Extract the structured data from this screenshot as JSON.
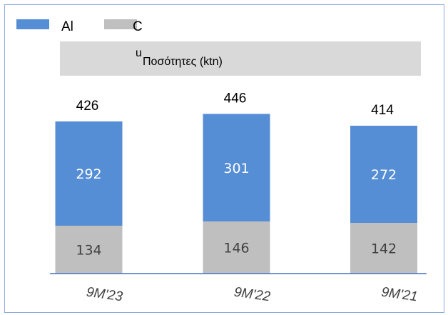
{
  "chart_data": {
    "type": "bar",
    "stacked": true,
    "title": "Ποσότητες (ktn)",
    "title_prefix": "u",
    "categories": [
      "9M'23",
      "9M'22",
      "9M'21"
    ],
    "series": [
      {
        "name": "C",
        "values": [
          134,
          146,
          142
        ],
        "color": "#bfbfbf"
      },
      {
        "name": "Al",
        "values": [
          292,
          301,
          272
        ],
        "color": "#558ed5"
      }
    ],
    "totals": [
      426,
      446,
      414
    ],
    "legend_position": "top-left",
    "grid": false,
    "ylim": [
      0,
      480
    ]
  }
}
